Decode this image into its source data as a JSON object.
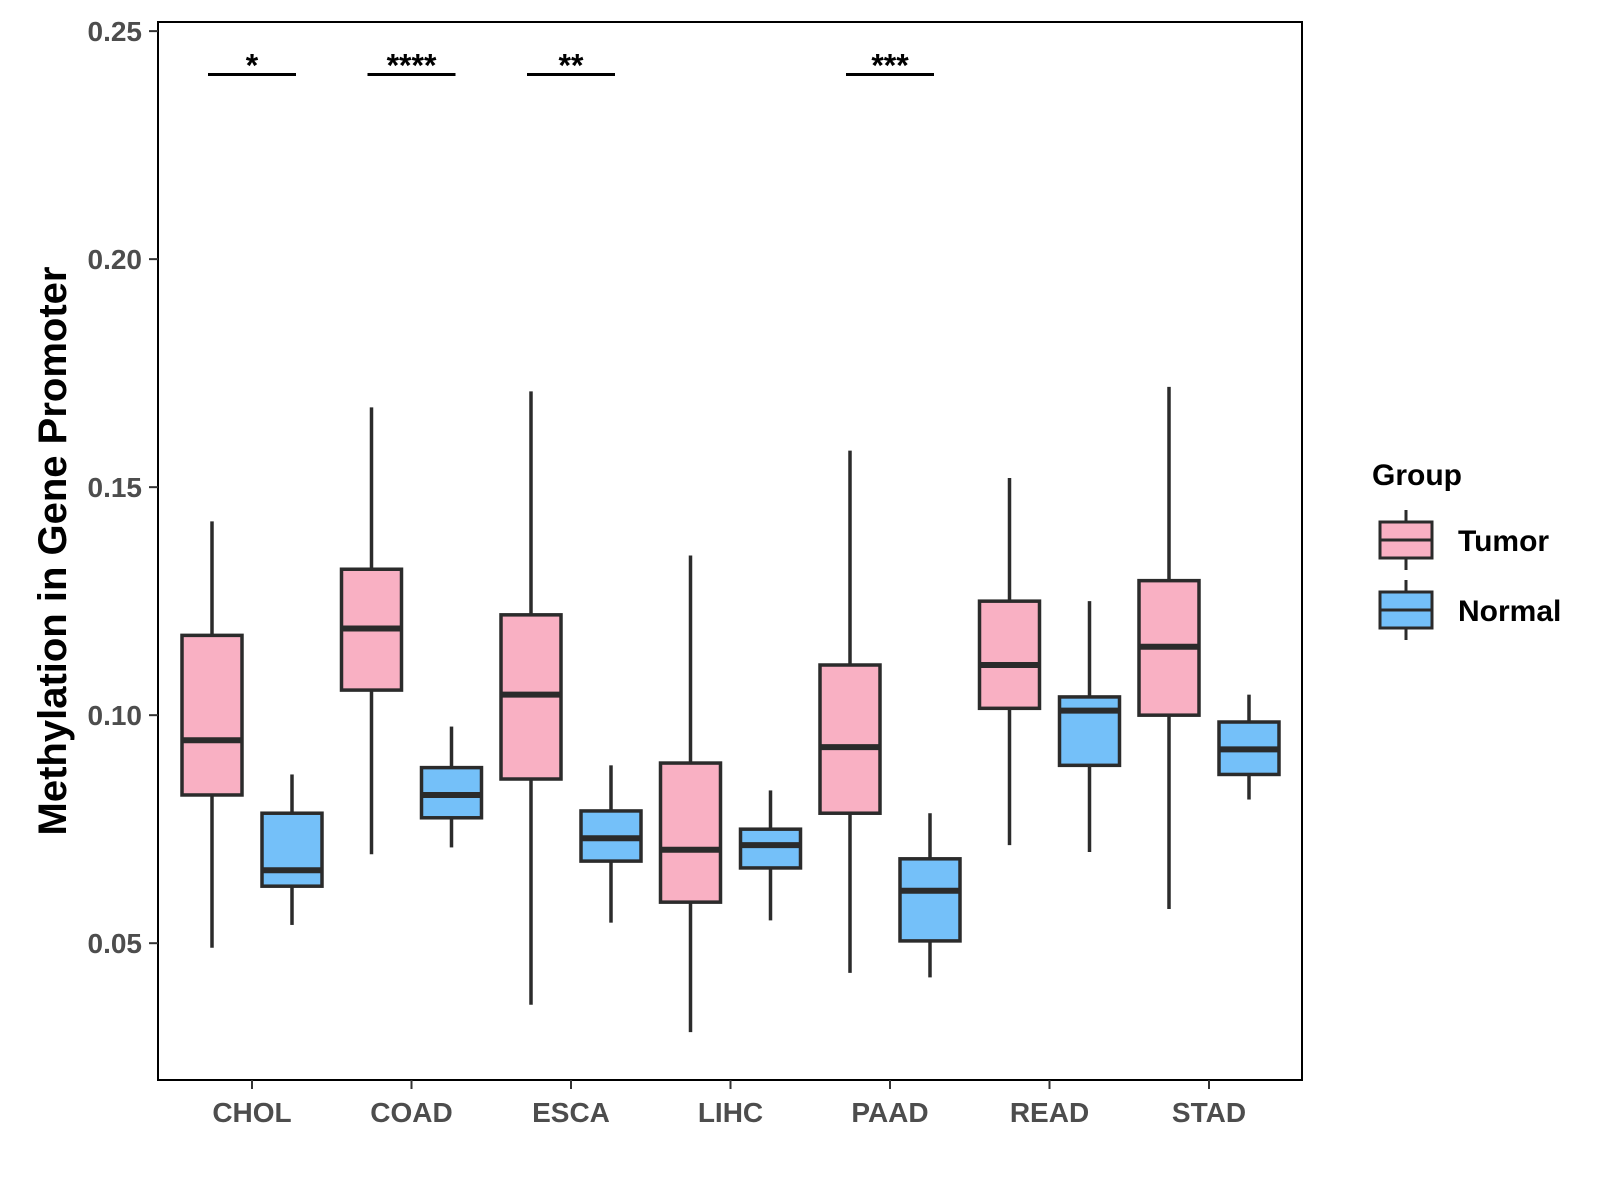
{
  "chart_data": {
    "type": "boxplot",
    "title": "",
    "xlabel": "",
    "ylabel": "Methylation in Gene Promoter",
    "ylim": [
      0.02,
      0.252
    ],
    "yticks": [
      0.05,
      0.1,
      0.15,
      0.2,
      0.25
    ],
    "ytick_labels": [
      "0.05",
      "0.10",
      "0.15",
      "0.20",
      "0.25"
    ],
    "categories": [
      "CHOL",
      "COAD",
      "ESCA",
      "LIHC",
      "PAAD",
      "READ",
      "STAD"
    ],
    "legend": {
      "title": "Group",
      "position": "right",
      "entries": [
        {
          "name": "Tumor",
          "color": "#f9b0c3"
        },
        {
          "name": "Normal",
          "color": "#74c0f9"
        }
      ]
    },
    "series": [
      {
        "name": "Tumor",
        "color": "#f9b0c3",
        "boxes": [
          {
            "category": "CHOL",
            "whisker_low": 0.049,
            "q1": 0.0825,
            "median": 0.0945,
            "q3": 0.1175,
            "whisker_high": 0.1425
          },
          {
            "category": "COAD",
            "whisker_low": 0.0695,
            "q1": 0.1055,
            "median": 0.119,
            "q3": 0.132,
            "whisker_high": 0.1675
          },
          {
            "category": "ESCA",
            "whisker_low": 0.0365,
            "q1": 0.086,
            "median": 0.1045,
            "q3": 0.122,
            "whisker_high": 0.171
          },
          {
            "category": "LIHC",
            "whisker_low": 0.0305,
            "q1": 0.059,
            "median": 0.0705,
            "q3": 0.0895,
            "whisker_high": 0.135
          },
          {
            "category": "PAAD",
            "whisker_low": 0.0435,
            "q1": 0.0785,
            "median": 0.093,
            "q3": 0.111,
            "whisker_high": 0.158
          },
          {
            "category": "READ",
            "whisker_low": 0.0715,
            "q1": 0.1015,
            "median": 0.111,
            "q3": 0.125,
            "whisker_high": 0.152
          },
          {
            "category": "STAD",
            "whisker_low": 0.0575,
            "q1": 0.1,
            "median": 0.115,
            "q3": 0.1295,
            "whisker_high": 0.172
          }
        ]
      },
      {
        "name": "Normal",
        "color": "#74c0f9",
        "boxes": [
          {
            "category": "CHOL",
            "whisker_low": 0.054,
            "q1": 0.0625,
            "median": 0.066,
            "q3": 0.0785,
            "whisker_high": 0.087
          },
          {
            "category": "COAD",
            "whisker_low": 0.071,
            "q1": 0.0775,
            "median": 0.0825,
            "q3": 0.0885,
            "whisker_high": 0.0975
          },
          {
            "category": "ESCA",
            "whisker_low": 0.0545,
            "q1": 0.068,
            "median": 0.073,
            "q3": 0.079,
            "whisker_high": 0.089
          },
          {
            "category": "LIHC",
            "whisker_low": 0.055,
            "q1": 0.0665,
            "median": 0.0715,
            "q3": 0.075,
            "whisker_high": 0.0835
          },
          {
            "category": "PAAD",
            "whisker_low": 0.0425,
            "q1": 0.0505,
            "median": 0.0615,
            "q3": 0.0685,
            "whisker_high": 0.0785
          },
          {
            "category": "READ",
            "whisker_low": 0.07,
            "q1": 0.089,
            "median": 0.101,
            "q3": 0.104,
            "whisker_high": 0.125
          },
          {
            "category": "STAD",
            "whisker_low": 0.0815,
            "q1": 0.087,
            "median": 0.0925,
            "q3": 0.0985,
            "whisker_high": 0.1045
          }
        ]
      }
    ],
    "annotations": [
      {
        "category": "CHOL",
        "label": "*",
        "y": 0.2405
      },
      {
        "category": "COAD",
        "label": "****",
        "y": 0.2405
      },
      {
        "category": "ESCA",
        "label": "**",
        "y": 0.2405
      },
      {
        "category": "PAAD",
        "label": "***",
        "y": 0.2405
      }
    ]
  }
}
